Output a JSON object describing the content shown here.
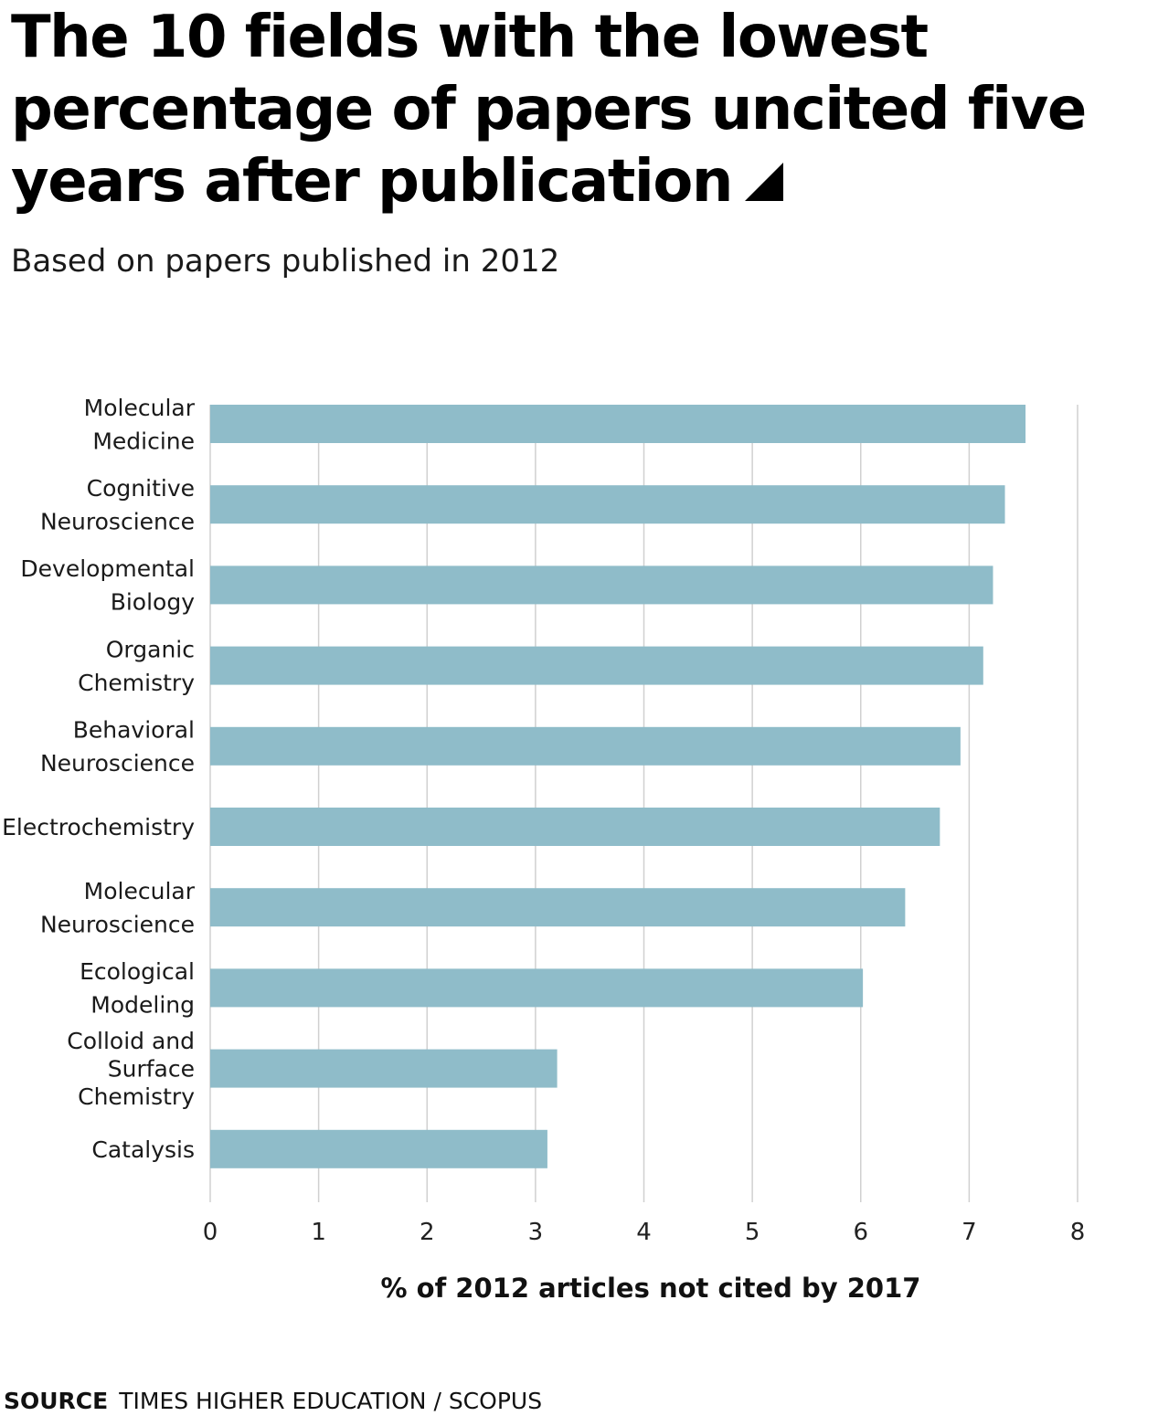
{
  "header": {
    "title": "The 10 fields with the lowest percentage of papers uncited five years after publication",
    "subtitle": "Based on papers published in 2012",
    "marker_icon": "triangle-corner-icon"
  },
  "chart_data": {
    "type": "bar",
    "orientation": "horizontal",
    "categories": [
      "Molecular Medicine",
      "Cognitive Neuroscience",
      "Developmental Biology",
      "Organic Chemistry",
      "Behavioral Neuroscience",
      "Electrochemistry",
      "Molecular Neuroscience",
      "Ecological Modeling",
      "Colloid and Surface Chemistry",
      "Catalysis"
    ],
    "category_label_lines": [
      [
        "Molecular",
        "Medicine"
      ],
      [
        "Cognitive",
        "Neuroscience"
      ],
      [
        "Developmental",
        "Biology"
      ],
      [
        "Organic",
        "Chemistry"
      ],
      [
        "Behavioral",
        "Neuroscience"
      ],
      [
        "Electrochemistry"
      ],
      [
        "Molecular",
        "Neuroscience"
      ],
      [
        "Ecological",
        "Modeling"
      ],
      [
        "Colloid and",
        "Surface",
        "Chemistry"
      ],
      [
        "Catalysis"
      ]
    ],
    "values": [
      7.52,
      7.33,
      7.22,
      7.13,
      6.92,
      6.73,
      6.41,
      6.02,
      3.2,
      3.11
    ],
    "xlabel": "% of 2012 articles not cited by 2017",
    "ylabel": "",
    "xlim": [
      0,
      8
    ],
    "xticks": [
      "0",
      "1",
      "2",
      "3",
      "4",
      "5",
      "6",
      "7",
      "8"
    ],
    "grid": "vertical",
    "bar_color": "#8fbcc9",
    "grid_color": "#d0d0d0"
  },
  "footer": {
    "source_label": "SOURCE",
    "source_text": "TIMES HIGHER EDUCATION / SCOPUS"
  }
}
